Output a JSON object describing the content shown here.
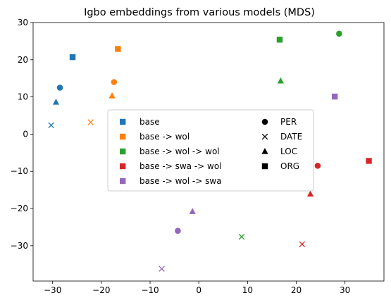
{
  "chart_data": {
    "type": "scatter",
    "title": "Igbo embeddings from various models (MDS)",
    "xlabel": "",
    "ylabel": "",
    "xlim": [
      -34,
      38
    ],
    "ylim": [
      -39.5,
      30
    ],
    "xticks": [
      -30,
      -20,
      -10,
      0,
      10,
      20,
      30
    ],
    "yticks": [
      -30,
      -20,
      -10,
      0,
      10,
      20,
      30
    ],
    "grid": false,
    "legend_placement": "center",
    "models": [
      {
        "name": "base",
        "color": "#1f77b4"
      },
      {
        "name": "base -> wol",
        "color": "#ff7f0e"
      },
      {
        "name": "base -> wol -> wol",
        "color": "#2ca02c"
      },
      {
        "name": "base -> swa -> wol",
        "color": "#d62728"
      },
      {
        "name": "base -> wol -> swa",
        "color": "#9467bd"
      }
    ],
    "entity_types": [
      {
        "name": "PER",
        "marker": "circle"
      },
      {
        "name": "DATE",
        "marker": "x"
      },
      {
        "name": "LOC",
        "marker": "triangle"
      },
      {
        "name": "ORG",
        "marker": "square"
      }
    ],
    "points": [
      {
        "model": "base",
        "entity": "PER",
        "x": -28.5,
        "y": 12.5
      },
      {
        "model": "base",
        "entity": "DATE",
        "x": -30.3,
        "y": 2.4
      },
      {
        "model": "base",
        "entity": "LOC",
        "x": -29.3,
        "y": 8.6
      },
      {
        "model": "base",
        "entity": "ORG",
        "x": -25.9,
        "y": 20.7
      },
      {
        "model": "base -> wol",
        "entity": "PER",
        "x": -17.4,
        "y": 14.0
      },
      {
        "model": "base -> wol",
        "entity": "DATE",
        "x": -22.2,
        "y": 3.2
      },
      {
        "model": "base -> wol",
        "entity": "LOC",
        "x": -17.8,
        "y": 10.3
      },
      {
        "model": "base -> wol",
        "entity": "ORG",
        "x": -16.6,
        "y": 22.9
      },
      {
        "model": "base -> wol -> wol",
        "entity": "PER",
        "x": 28.8,
        "y": 27.0
      },
      {
        "model": "base -> wol -> wol",
        "entity": "DATE",
        "x": 8.8,
        "y": -27.6
      },
      {
        "model": "base -> wol -> wol",
        "entity": "LOC",
        "x": 16.8,
        "y": 14.3
      },
      {
        "model": "base -> wol -> wol",
        "entity": "ORG",
        "x": 16.6,
        "y": 25.4
      },
      {
        "model": "base -> swa -> wol",
        "entity": "PER",
        "x": 24.4,
        "y": -8.5
      },
      {
        "model": "base -> swa -> wol",
        "entity": "DATE",
        "x": 21.2,
        "y": -29.6
      },
      {
        "model": "base -> swa -> wol",
        "entity": "LOC",
        "x": 22.9,
        "y": -16.1
      },
      {
        "model": "base -> swa -> wol",
        "entity": "ORG",
        "x": 34.9,
        "y": -7.2
      },
      {
        "model": "base -> wol -> swa",
        "entity": "PER",
        "x": -4.3,
        "y": -26.0
      },
      {
        "model": "base -> wol -> swa",
        "entity": "DATE",
        "x": -7.6,
        "y": -36.2
      },
      {
        "model": "base -> wol -> swa",
        "entity": "LOC",
        "x": -1.3,
        "y": -20.8
      },
      {
        "model": "base -> wol -> swa",
        "entity": "ORG",
        "x": 27.9,
        "y": 10.1
      }
    ]
  }
}
